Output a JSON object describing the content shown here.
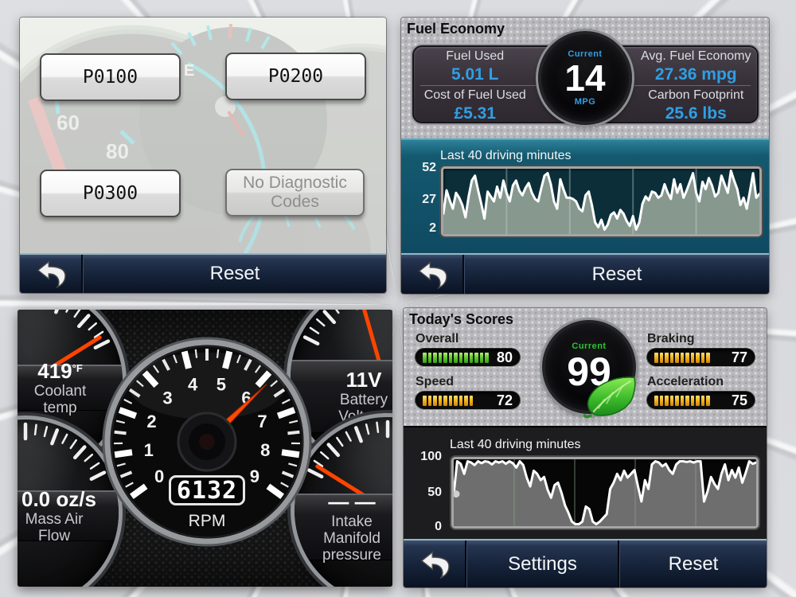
{
  "screens": {
    "diagnostics": {
      "codes": [
        "P0100",
        "P0200",
        "P0300"
      ],
      "no_codes_label": "No Diagnostic Codes",
      "cluster": {
        "sixty": "60",
        "eighty": "80",
        "e": "E"
      },
      "nav": {
        "reset": "Reset"
      }
    },
    "fuel_economy": {
      "title": "Fuel Economy",
      "stats": [
        {
          "label": "Fuel Used",
          "value": "5.01 L"
        },
        {
          "label": "Avg. Fuel Economy",
          "value": "27.36 mpg"
        },
        {
          "label": "Cost of Fuel Used",
          "value": "£5.31"
        },
        {
          "label": "Carbon Footprint",
          "value": "25.6 lbs"
        }
      ],
      "gauge": {
        "top": "Current",
        "value": "14",
        "bottom": "MPG"
      },
      "chart_title": "Last 40 driving minutes",
      "nav": {
        "reset": "Reset"
      }
    },
    "gauges": {
      "rpm": {
        "value": "6132",
        "label": "RPM",
        "ticks": [
          "0",
          "1",
          "2",
          "3",
          "4",
          "5",
          "6",
          "7",
          "8",
          "9"
        ]
      },
      "coolant": {
        "value": "419",
        "unit": "°F",
        "label": "Coolant temp"
      },
      "battery": {
        "value": "11V",
        "label": "Battery Voltage"
      },
      "maf": {
        "value": "0.0 oz/s",
        "label": "Mass Air Flow"
      },
      "intake": {
        "value": "— —",
        "label": "Intake Manifold pressure"
      }
    },
    "scores": {
      "title": "Today's Scores",
      "bars": [
        {
          "label": "Overall",
          "value": "80",
          "color": "green",
          "segments": 13
        },
        {
          "label": "Speed",
          "value": "72",
          "color": "amber",
          "segments": 10
        },
        {
          "label": "Braking",
          "value": "77",
          "color": "amber",
          "segments": 11
        },
        {
          "label": "Acceleration",
          "value": "75",
          "color": "amber",
          "segments": 11
        }
      ],
      "gauge": {
        "top": "Current",
        "value": "99"
      },
      "chart_title": "Last 40 driving minutes",
      "nav": {
        "settings": "Settings",
        "reset": "Reset"
      }
    }
  },
  "chart_data": [
    {
      "type": "line",
      "title": "Last 40 driving minutes",
      "x_span_minutes": 40,
      "ylim": [
        2,
        52
      ],
      "ytick_labels": [
        "52",
        "27",
        "2"
      ],
      "grid": "vertical",
      "gridlines": 4,
      "grid_color": "rgba(200,220,215,0.35)",
      "line_color": "#ffffff",
      "fill_color": "#87988f",
      "bg_color": "#0c2e38",
      "values": [
        17,
        36,
        28,
        21,
        34,
        30,
        24,
        14,
        31,
        44,
        48,
        36,
        25,
        13,
        35,
        31,
        27,
        39,
        30,
        44,
        34,
        27,
        40,
        44,
        36,
        32,
        38,
        42,
        34,
        29,
        27,
        38,
        48,
        50,
        41,
        27,
        21,
        45,
        37,
        30,
        30,
        29,
        27,
        21,
        19,
        32,
        35,
        24,
        10,
        6,
        12,
        4,
        8,
        16,
        18,
        13,
        20,
        17,
        11,
        7,
        15,
        4,
        10,
        25,
        31,
        28,
        35,
        34,
        30,
        32,
        41,
        34,
        29,
        45,
        34,
        41,
        30,
        36,
        43,
        50,
        34,
        27,
        43,
        37,
        46,
        40,
        31,
        34,
        48,
        41,
        34,
        52,
        44,
        37,
        24,
        30,
        21,
        35,
        50,
        30,
        33
      ]
    },
    {
      "type": "line",
      "title": "Last 40 driving minutes",
      "x_span_minutes": 40,
      "ylim": [
        0,
        100
      ],
      "ytick_labels": [
        "100",
        "50",
        "0"
      ],
      "grid": "vertical",
      "gridlines": 4,
      "grid_color": "rgba(140,165,140,0.35)",
      "line_color": "#ffffff",
      "fill_color": "#6e6e6e",
      "bg_color": "#060606",
      "start_dot": true,
      "values": [
        48,
        100,
        96,
        80,
        100,
        98,
        94,
        100,
        97,
        100,
        99,
        95,
        100,
        98,
        100,
        96,
        100,
        97,
        90,
        100,
        94,
        74,
        60,
        85,
        80,
        70,
        75,
        55,
        42,
        62,
        66,
        50,
        30,
        18,
        4,
        0,
        0,
        4,
        28,
        24,
        4,
        0,
        4,
        10,
        16,
        56,
        66,
        80,
        70,
        85,
        74,
        80,
        86,
        60,
        36,
        70,
        56,
        95,
        100,
        98,
        92,
        96,
        86,
        80,
        95,
        100,
        100,
        99,
        100,
        98,
        100,
        100,
        36,
        52,
        75,
        64,
        56,
        80,
        95,
        70,
        86,
        74,
        90,
        66,
        82,
        100,
        96,
        98
      ]
    }
  ],
  "colors": {
    "value_blue": "#2f9fe4",
    "score_green": "#29c829",
    "bar_green": "#63cc30",
    "bar_amber": "#f4b51e",
    "needle_red": "#ff4400",
    "nav_bg": "#152238",
    "teal_chart_bg": "#0f4a62"
  }
}
